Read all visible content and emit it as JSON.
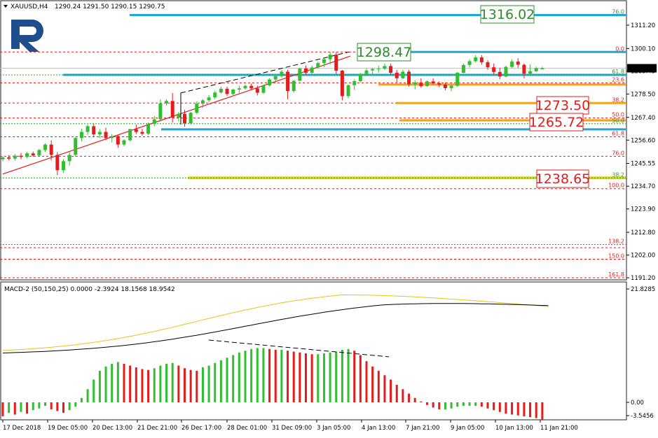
{
  "header": {
    "symbol": "XAUUSD,H4",
    "ohlc": "1290.24 1291.50 1290.15 1290.75"
  },
  "current_price": "1290.75",
  "macd": {
    "title": "MACD-2 (50,150,25) 0.0000 -2.3924 18.1568 18.9542",
    "axis_labels": [
      "21.8285",
      "0.00",
      "-3.5456"
    ]
  },
  "price_axis_labels": [
    "1311.20",
    "1300.10",
    "1289.45",
    "1278.50",
    "1267.40",
    "1256.60",
    "1245.55",
    "1234.70",
    "1223.90",
    "1212.80",
    "1202.00",
    "1191.20"
  ],
  "time_axis_labels": [
    "17 Dec 2018",
    "19 Dec 05:00",
    "20 Dec 13:00",
    "21 Dec 21:00",
    "26 Dec 17:00",
    "28 Dec 01:00",
    "31 Dec 09:00",
    "3 Jan 05:00",
    "4 Jan 13:00",
    "7 Jan 21:00",
    "9 Jan 05:00",
    "10 Jan 13:00",
    "11 Jan 21:00"
  ],
  "fib_labels": [
    {
      "text": "76.0",
      "color": "green"
    },
    {
      "text": "0.0",
      "color": "red"
    },
    {
      "text": "61.8",
      "color": "green"
    },
    {
      "text": "23.6",
      "color": "red"
    },
    {
      "text": "38.2",
      "color": "red"
    },
    {
      "text": "50.0",
      "color": "red"
    },
    {
      "text": "50.0",
      "color": "green"
    },
    {
      "text": "61.8",
      "color": "red"
    },
    {
      "text": "76.0",
      "color": "red"
    },
    {
      "text": "38.2",
      "color": "green"
    },
    {
      "text": "100.0",
      "color": "red"
    },
    {
      "text": "138.2",
      "color": "red"
    },
    {
      "text": "150.0",
      "color": "red"
    },
    {
      "text": "161.8",
      "color": "red"
    }
  ],
  "level_labels": [
    {
      "text": "1316.02",
      "color": "#2e8b2e"
    },
    {
      "text": "1298.47",
      "color": "#2e8b2e"
    },
    {
      "text": "1273.50",
      "color": "#e01b1b"
    },
    {
      "text": "1265.72",
      "color": "#e01b1b"
    },
    {
      "text": "1238.65",
      "color": "#e01b1b"
    }
  ],
  "colors": {
    "bull": "#2fbf2f",
    "bear": "#e61c1c",
    "fib_red": "#e01b1b",
    "fib_green": "#2e9a2e",
    "cyan_level": "#1ea7dc",
    "orange_level": "#f4a21b",
    "yellow_level": "#e2d31a",
    "macd_main": "#000000",
    "macd_signal": "#e8c21b"
  },
  "chart_data": {
    "type": "candlestick",
    "symbol": "XAUUSD",
    "timeframe": "H4",
    "ylim": [
      1185,
      1320
    ],
    "candles": [
      [
        1247.5,
        1249,
        1246.5,
        1248.4
      ],
      [
        1248.4,
        1249.5,
        1247,
        1247.8
      ],
      [
        1247.8,
        1250,
        1246.8,
        1249.2
      ],
      [
        1249.2,
        1250.5,
        1247.5,
        1248.6
      ],
      [
        1248.6,
        1251,
        1247.9,
        1250.3
      ],
      [
        1250.3,
        1251.2,
        1248.7,
        1249.3
      ],
      [
        1249.3,
        1252.5,
        1248.8,
        1251.9
      ],
      [
        1251.9,
        1255,
        1251,
        1254.5
      ],
      [
        1254.5,
        1256.5,
        1247,
        1249.6
      ],
      [
        1249.6,
        1251,
        1240,
        1242.3
      ],
      [
        1242.3,
        1247.5,
        1241,
        1246.6
      ],
      [
        1246.6,
        1251,
        1244.5,
        1249.6
      ],
      [
        1249.6,
        1258,
        1248.8,
        1257.6
      ],
      [
        1257.6,
        1262,
        1256,
        1260.5
      ],
      [
        1260.5,
        1264,
        1259.1,
        1263.2
      ],
      [
        1263.2,
        1264.5,
        1258,
        1259.3
      ],
      [
        1259.3,
        1261.8,
        1257.5,
        1260.5
      ],
      [
        1260.5,
        1262.5,
        1256.5,
        1257.6
      ],
      [
        1257.6,
        1259.5,
        1255.5,
        1258.5
      ],
      [
        1258.5,
        1259,
        1253,
        1254.5
      ],
      [
        1254.5,
        1257,
        1253.6,
        1256.5
      ],
      [
        1256.5,
        1262,
        1256,
        1261.8
      ],
      [
        1261.8,
        1264,
        1259.5,
        1260.5
      ],
      [
        1260.5,
        1262,
        1258.7,
        1259.6
      ],
      [
        1259.6,
        1265,
        1258.9,
        1264.3
      ],
      [
        1264.3,
        1268,
        1263.1,
        1266.5
      ],
      [
        1266.5,
        1276,
        1266,
        1274
      ],
      [
        1274,
        1276,
        1273,
        1275.2
      ],
      [
        1275.2,
        1279,
        1265,
        1267.3
      ],
      [
        1267.3,
        1270,
        1265.5,
        1269.1
      ],
      [
        1269.1,
        1271,
        1263,
        1264.6
      ],
      [
        1264.6,
        1270,
        1264,
        1269.6
      ],
      [
        1269.6,
        1275,
        1269,
        1273.9
      ],
      [
        1273.9,
        1276,
        1272,
        1275.5
      ],
      [
        1275.5,
        1278,
        1274.5,
        1276.9
      ],
      [
        1276.9,
        1280,
        1276,
        1279.2
      ],
      [
        1279.2,
        1282,
        1278.6,
        1281
      ],
      [
        1281,
        1282,
        1277.5,
        1278.5
      ],
      [
        1278.5,
        1281,
        1278,
        1280.6
      ],
      [
        1280.6,
        1282.5,
        1279,
        1281.2
      ],
      [
        1281.2,
        1283,
        1280.5,
        1282.4
      ],
      [
        1282.4,
        1283.5,
        1280.4,
        1281.2
      ],
      [
        1281.2,
        1282.5,
        1277.8,
        1279.1
      ],
      [
        1279.1,
        1283,
        1278.5,
        1282.6
      ],
      [
        1282.6,
        1286,
        1282.1,
        1285.4
      ],
      [
        1285.4,
        1288,
        1284.5,
        1287
      ],
      [
        1287,
        1290,
        1286.2,
        1289.1
      ],
      [
        1289.1,
        1290,
        1276,
        1279.9
      ],
      [
        1279.9,
        1285,
        1279.1,
        1284.8
      ],
      [
        1284.8,
        1291,
        1284.5,
        1290.6
      ],
      [
        1290.6,
        1292,
        1287.6,
        1288.6
      ],
      [
        1288.6,
        1292,
        1287.1,
        1291.1
      ],
      [
        1291.1,
        1294,
        1290.5,
        1293.2
      ],
      [
        1293.2,
        1296,
        1291.3,
        1295
      ],
      [
        1295,
        1298.5,
        1292.5,
        1297.2
      ],
      [
        1297.2,
        1298.5,
        1288,
        1289.6
      ],
      [
        1289.6,
        1290,
        1275.5,
        1277.5
      ],
      [
        1277.5,
        1283,
        1276.5,
        1282.7
      ],
      [
        1282.7,
        1285.5,
        1280.4,
        1284.6
      ],
      [
        1284.6,
        1288.5,
        1284,
        1287.9
      ],
      [
        1287.9,
        1290.5,
        1287.1,
        1289.7
      ],
      [
        1289.7,
        1291,
        1288,
        1290.4
      ],
      [
        1290.4,
        1292,
        1288.7,
        1290.5
      ],
      [
        1290.5,
        1293,
        1290,
        1291.8
      ],
      [
        1291.8,
        1293,
        1287.5,
        1288.6
      ],
      [
        1288.6,
        1290,
        1284,
        1286
      ],
      [
        1286,
        1290,
        1285.5,
        1289.1
      ],
      [
        1289.1,
        1290,
        1282,
        1283.1
      ],
      [
        1283.1,
        1285,
        1280.8,
        1284
      ],
      [
        1284,
        1286,
        1281.5,
        1282.3
      ],
      [
        1282.3,
        1285,
        1282,
        1284.5
      ],
      [
        1284.5,
        1286,
        1283,
        1283.6
      ],
      [
        1283.6,
        1284.5,
        1281.8,
        1283
      ],
      [
        1283,
        1284,
        1280.3,
        1281.3
      ],
      [
        1281.3,
        1283,
        1279.8,
        1282.4
      ],
      [
        1282.4,
        1289,
        1281.9,
        1288.6
      ],
      [
        1288.6,
        1293,
        1288.3,
        1292.3
      ],
      [
        1292.3,
        1295,
        1291.1,
        1294.1
      ],
      [
        1294.1,
        1297,
        1293.5,
        1295.9
      ],
      [
        1295.9,
        1297,
        1292.4,
        1293.6
      ],
      [
        1293.6,
        1294.5,
        1290,
        1291.2
      ],
      [
        1291.2,
        1293,
        1287.8,
        1289
      ],
      [
        1289,
        1291,
        1285.5,
        1286.8
      ],
      [
        1286.8,
        1292,
        1286.4,
        1291.4
      ],
      [
        1291.4,
        1295,
        1290.8,
        1293.9
      ],
      [
        1293.9,
        1295.5,
        1291,
        1292.4
      ],
      [
        1292.4,
        1293,
        1286,
        1288.2
      ],
      [
        1288.2,
        1292.5,
        1287.8,
        1289.3
      ],
      [
        1289.3,
        1291.5,
        1289,
        1290.8
      ],
      [
        1290.24,
        1291.5,
        1290.15,
        1290.75
      ]
    ],
    "macd_histogram": [
      -1.6,
      -1.2,
      -1.4,
      -1.1,
      -1.3,
      -0.9,
      -0.7,
      -0.4,
      -0.8,
      -1.0,
      -1.2,
      -0.9,
      -0.5,
      0.5,
      1.5,
      2.6,
      3.6,
      4.1,
      4.4,
      4.6,
      4.4,
      4.2,
      4.0,
      3.8,
      3.7,
      3.9,
      4.2,
      4.4,
      4.5,
      4.2,
      3.9,
      3.7,
      3.6,
      4.0,
      4.2,
      4.5,
      4.8,
      5.1,
      5.4,
      5.7,
      5.9,
      6.1,
      6.2,
      6.2,
      6.1,
      6.0,
      6.0,
      5.9,
      5.8,
      5.7,
      5.6,
      5.5,
      5.5,
      5.6,
      5.7,
      5.8,
      6.0,
      6.1,
      5.9,
      5.4,
      4.7,
      4.1,
      3.6,
      3.1,
      2.6,
      2.0,
      1.5,
      1.0,
      0.5,
      0.1,
      -0.3,
      -0.6,
      -0.8,
      -0.8,
      -0.7,
      -0.5,
      -0.4,
      -0.4,
      -0.4,
      -0.5,
      -0.7,
      -0.9,
      -1.1,
      -1.3,
      -1.4,
      -1.5,
      -1.6,
      -1.7,
      -1.8,
      -2.0
    ],
    "title": "XAUUSD,H4"
  }
}
